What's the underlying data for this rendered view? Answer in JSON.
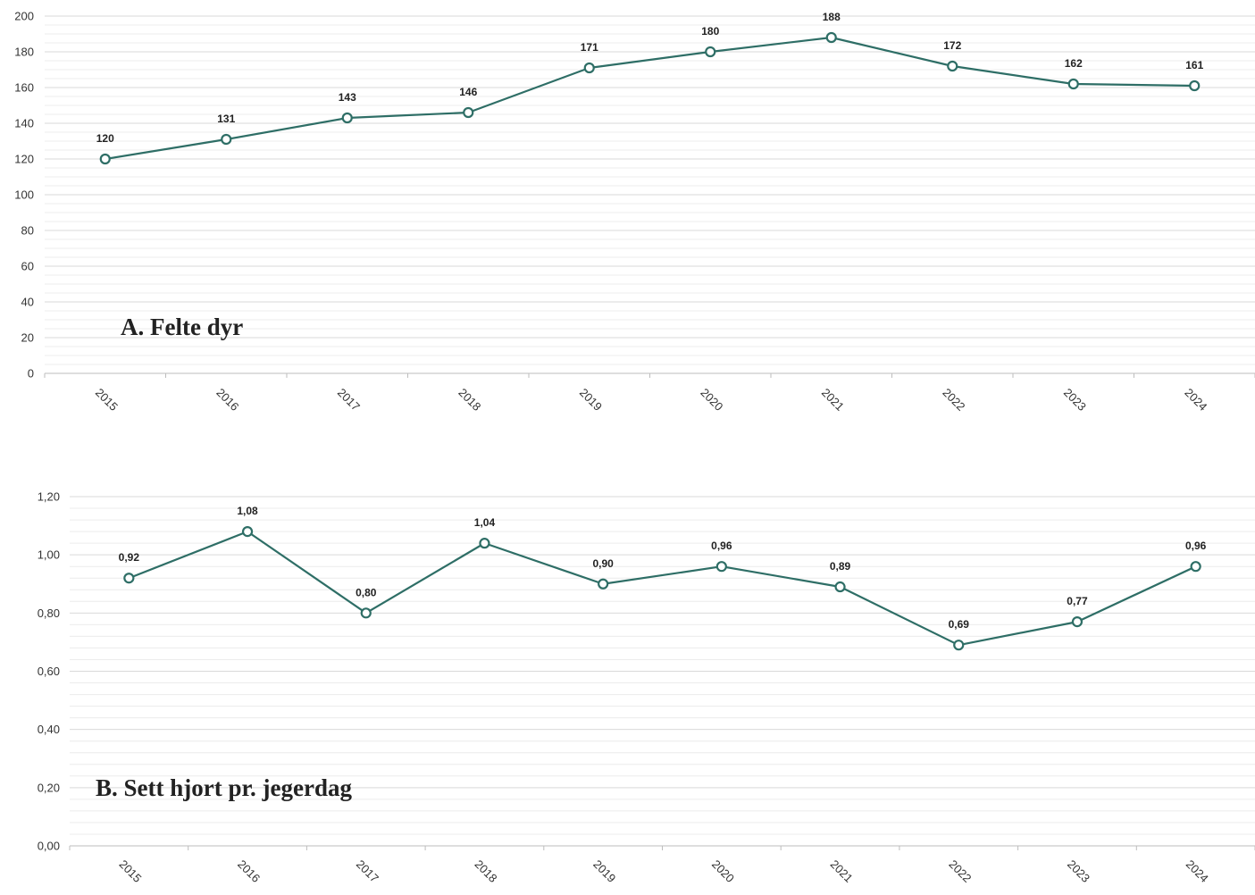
{
  "colors": {
    "line": "#2e6e66",
    "point_fill": "#ffffff",
    "grid_major": "#d9d9d9",
    "grid_minor": "#ececec",
    "axis": "#bdbdbd"
  },
  "chart_data": [
    {
      "type": "line",
      "title": "A.  Felte dyr",
      "categories": [
        "2015",
        "2016",
        "2017",
        "2018",
        "2019",
        "2020",
        "2021",
        "2022",
        "2023",
        "2024"
      ],
      "series": [
        {
          "values": [
            120,
            131,
            143,
            146,
            171,
            180,
            188,
            172,
            162,
            161
          ]
        }
      ],
      "value_labels": [
        "120",
        "131",
        "143",
        "146",
        "171",
        "180",
        "188",
        "172",
        "162",
        "161"
      ],
      "ylim": [
        0,
        200
      ],
      "yticks": [
        0,
        20,
        40,
        60,
        80,
        100,
        120,
        140,
        160,
        180,
        200
      ],
      "ytick_labels": [
        "0",
        "20",
        "40",
        "60",
        "80",
        "100",
        "120",
        "140",
        "160",
        "180",
        "200"
      ],
      "grid": true,
      "xlabel": "",
      "ylabel": ""
    },
    {
      "type": "line",
      "title": "B.  Sett hjort pr. jegerdag",
      "categories": [
        "2015",
        "2016",
        "2017",
        "2018",
        "2019",
        "2020",
        "2021",
        "2022",
        "2023",
        "2024"
      ],
      "series": [
        {
          "values": [
            0.92,
            1.08,
            0.8,
            1.04,
            0.9,
            0.96,
            0.89,
            0.69,
            0.77,
            0.96
          ]
        }
      ],
      "value_labels": [
        "0,92",
        "1,08",
        "0,80",
        "1,04",
        "0,90",
        "0,96",
        "0,89",
        "0,69",
        "0,77",
        "0,96"
      ],
      "ylim": [
        0,
        1.2
      ],
      "yticks": [
        0,
        0.2,
        0.4,
        0.6,
        0.8,
        1.0,
        1.2
      ],
      "ytick_labels": [
        "0,00",
        "0,20",
        "0,40",
        "0,60",
        "0,80",
        "1,00",
        "1,20"
      ],
      "grid": true,
      "xlabel": "",
      "ylabel": ""
    }
  ]
}
